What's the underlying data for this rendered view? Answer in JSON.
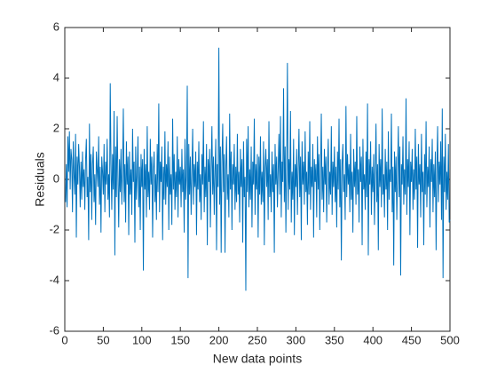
{
  "chart_data": {
    "type": "line",
    "xlabel": "New data points",
    "ylabel": "Residuals",
    "color": "#0072BD",
    "xlim": [
      0,
      500
    ],
    "ylim": [
      -6,
      6
    ],
    "xticks": [
      0,
      50,
      100,
      150,
      200,
      250,
      300,
      350,
      400,
      450,
      500
    ],
    "yticks": [
      -6,
      -4,
      -2,
      0,
      2,
      4,
      6
    ],
    "x": [
      1,
      2,
      3,
      4,
      5,
      6,
      7,
      8,
      9,
      10,
      11,
      12,
      13,
      14,
      15,
      16,
      17,
      18,
      19,
      20,
      21,
      22,
      23,
      24,
      25,
      26,
      27,
      28,
      29,
      30,
      31,
      32,
      33,
      34,
      35,
      36,
      37,
      38,
      39,
      40,
      41,
      42,
      43,
      44,
      45,
      46,
      47,
      48,
      49,
      50,
      51,
      52,
      53,
      54,
      55,
      56,
      57,
      58,
      59,
      60,
      61,
      62,
      63,
      64,
      65,
      66,
      67,
      68,
      69,
      70,
      71,
      72,
      73,
      74,
      75,
      76,
      77,
      78,
      79,
      80,
      81,
      82,
      83,
      84,
      85,
      86,
      87,
      88,
      89,
      90,
      91,
      92,
      93,
      94,
      95,
      96,
      97,
      98,
      99,
      100,
      101,
      102,
      103,
      104,
      105,
      106,
      107,
      108,
      109,
      110,
      111,
      112,
      113,
      114,
      115,
      116,
      117,
      118,
      119,
      120,
      121,
      122,
      123,
      124,
      125,
      126,
      127,
      128,
      129,
      130,
      131,
      132,
      133,
      134,
      135,
      136,
      137,
      138,
      139,
      140,
      141,
      142,
      143,
      144,
      145,
      146,
      147,
      148,
      149,
      150,
      151,
      152,
      153,
      154,
      155,
      156,
      157,
      158,
      159,
      160,
      161,
      162,
      163,
      164,
      165,
      166,
      167,
      168,
      169,
      170,
      171,
      172,
      173,
      174,
      175,
      176,
      177,
      178,
      179,
      180,
      181,
      182,
      183,
      184,
      185,
      186,
      187,
      188,
      189,
      190,
      191,
      192,
      193,
      194,
      195,
      196,
      197,
      198,
      199,
      200,
      201,
      202,
      203,
      204,
      205,
      206,
      207,
      208,
      209,
      210,
      211,
      212,
      213,
      214,
      215,
      216,
      217,
      218,
      219,
      220,
      221,
      222,
      223,
      224,
      225,
      226,
      227,
      228,
      229,
      230,
      231,
      232,
      233,
      234,
      235,
      236,
      237,
      238,
      239,
      240,
      241,
      242,
      243,
      244,
      245,
      246,
      247,
      248,
      249,
      250,
      251,
      252,
      253,
      254,
      255,
      256,
      257,
      258,
      259,
      260,
      261,
      262,
      263,
      264,
      265,
      266,
      267,
      268,
      269,
      270,
      271,
      272,
      273,
      274,
      275,
      276,
      277,
      278,
      279,
      280,
      281,
      282,
      283,
      284,
      285,
      286,
      287,
      288,
      289,
      290,
      291,
      292,
      293,
      294,
      295,
      296,
      297,
      298,
      299,
      300,
      301,
      302,
      303,
      304,
      305,
      306,
      307,
      308,
      309,
      310,
      311,
      312,
      313,
      314,
      315,
      316,
      317,
      318,
      319,
      320,
      321,
      322,
      323,
      324,
      325,
      326,
      327,
      328,
      329,
      330,
      331,
      332,
      333,
      334,
      335,
      336,
      337,
      338,
      339,
      340,
      341,
      342,
      343,
      344,
      345,
      346,
      347,
      348,
      349,
      350,
      351,
      352,
      353,
      354,
      355,
      356,
      357,
      358,
      359,
      360,
      361,
      362,
      363,
      364,
      365,
      366,
      367,
      368,
      369,
      370,
      371,
      372,
      373,
      374,
      375,
      376,
      377,
      378,
      379,
      380,
      381,
      382,
      383,
      384,
      385,
      386,
      387,
      388,
      389,
      390,
      391,
      392,
      393,
      394,
      395,
      396,
      397,
      398,
      399,
      400,
      401,
      402,
      403,
      404,
      405,
      406,
      407,
      408,
      409,
      410,
      411,
      412,
      413,
      414,
      415,
      416,
      417,
      418,
      419,
      420,
      421,
      422,
      423,
      424,
      425,
      426,
      427,
      428,
      429,
      430,
      431,
      432,
      433,
      434,
      435,
      436,
      437,
      438,
      439,
      440,
      441,
      442,
      443,
      444,
      445,
      446,
      447,
      448,
      449,
      450,
      451,
      452,
      453,
      454,
      455,
      456,
      457,
      458,
      459,
      460,
      461,
      462,
      463,
      464,
      465,
      466,
      467,
      468,
      469,
      470,
      471,
      472,
      473,
      474,
      475,
      476,
      477,
      478,
      479,
      480,
      481,
      482,
      483,
      484,
      485,
      486,
      487,
      488,
      489,
      490,
      491,
      492,
      493,
      494,
      495,
      496,
      497,
      498,
      499,
      500
    ],
    "values": [
      -0.9,
      0.6,
      -1.1,
      1.7,
      0.3,
      1.9,
      -0.4,
      1.2,
      0.8,
      -1.3,
      1.5,
      0.2,
      -0.6,
      1.8,
      -2.3,
      0.9,
      -0.2,
      1.4,
      0.5,
      -1.1,
      0.7,
      -0.8,
      1.1,
      -0.3,
      0.4,
      -1.2,
      0.8,
      1.6,
      -0.7,
      0.1,
      -2.4,
      2.2,
      -0.5,
      1.0,
      -1.6,
      0.6,
      1.3,
      -0.9,
      0.2,
      -1.8,
      1.1,
      0.4,
      -0.3,
      1.7,
      -1.0,
      0.5,
      -2.1,
      0.9,
      0.3,
      -0.6,
      1.4,
      -1.3,
      0.7,
      -0.2,
      1.6,
      -0.8,
      0.2,
      -1.5,
      3.8,
      0.6,
      -1.2,
      1.0,
      -0.4,
      2.7,
      -3.0,
      1.3,
      -0.7,
      2.5,
      0.1,
      -1.9,
      0.8,
      -0.5,
      1.2,
      -1.0,
      0.3,
      2.8,
      -0.9,
      0.6,
      -1.7,
      1.5,
      -0.2,
      0.9,
      -2.2,
      1.1,
      -0.6,
      0.4,
      -1.4,
      2.0,
      -0.1,
      0.7,
      -2.5,
      1.3,
      -0.8,
      0.2,
      1.7,
      -1.1,
      0.5,
      -2.0,
      1.0,
      -0.3,
      0.8,
      -3.6,
      1.2,
      -0.4,
      0.6,
      -1.5,
      2.1,
      -0.7,
      0.3,
      -1.2,
      1.6,
      -0.2,
      0.9,
      -2.3,
      0.4,
      1.1,
      -0.9,
      0.2,
      -1.6,
      1.4,
      -0.5,
      3.0,
      -1.3,
      0.7,
      -0.1,
      1.3,
      -2.4,
      0.5,
      -0.8,
      1.9,
      -1.0,
      0.6,
      -0.3,
      1.5,
      -2.0,
      0.9,
      -0.6,
      0.2,
      -1.8,
      2.4,
      -0.4,
      1.0,
      -1.2,
      0.3,
      -0.7,
      1.7,
      -1.5,
      0.8,
      -0.2,
      0.5,
      -1.1,
      1.2,
      -0.5,
      0.4,
      -2.1,
      1.6,
      -0.8,
      0.1,
      3.7,
      -3.9,
      1.4,
      -0.6,
      0.9,
      -1.4,
      0.3,
      2.0,
      -1.0,
      0.6,
      -0.3,
      1.1,
      -2.2,
      0.7,
      -0.4,
      1.5,
      -0.9,
      0.2,
      -1.6,
      1.0,
      -0.2,
      2.3,
      -1.3,
      0.5,
      -0.7,
      1.4,
      -2.6,
      0.8,
      -0.1,
      1.2,
      -1.9,
      0.4,
      2.1,
      -0.6,
      0.9,
      -1.4,
      0.3,
      1.6,
      -2.8,
      0.6,
      -0.3,
      5.2,
      -1.0,
      1.3,
      -2.9,
      0.7,
      2.2,
      -0.5,
      1.0,
      -2.9,
      0.4,
      1.7,
      -0.8,
      0.2,
      -1.5,
      2.6,
      -0.4,
      1.1,
      -2.0,
      0.6,
      -0.2,
      1.4,
      -1.2,
      0.5,
      -0.9,
      1.8,
      -0.6,
      0.3,
      -1.7,
      1.2,
      -0.3,
      0.8,
      -2.5,
      1.5,
      -0.7,
      0.1,
      -4.4,
      1.6,
      -0.5,
      2.1,
      -1.1,
      0.4,
      -0.8,
      1.3,
      -1.9,
      0.7,
      -0.2,
      2.4,
      -1.4,
      0.6,
      -0.4,
      1.0,
      -2.3,
      0.9,
      -0.6,
      1.7,
      -1.0,
      0.3,
      -0.9,
      1.5,
      -2.6,
      0.5,
      1.2,
      -0.3,
      0.8,
      -1.6,
      2.3,
      -0.7,
      0.2,
      -1.3,
      1.1,
      -0.5,
      0.6,
      -2.9,
      1.4,
      -0.2,
      0.9,
      -1.1,
      0.4,
      1.8,
      -0.6,
      2.5,
      -1.5,
      0.7,
      -0.1,
      3.6,
      -0.9,
      1.3,
      -2.1,
      0.5,
      4.6,
      -1.2,
      0.8,
      -0.4,
      2.7,
      -1.7,
      0.3,
      -0.8,
      1.6,
      -2.2,
      0.6,
      -0.3,
      1.2,
      -1.4,
      0.4,
      2.0,
      -0.7,
      0.9,
      -2.4,
      1.5,
      -0.2,
      0.7,
      -1.0,
      1.9,
      -0.5,
      0.3,
      -1.8,
      1.1,
      -0.6,
      2.3,
      -1.2,
      0.5,
      -0.3,
      1.4,
      -2.3,
      0.8,
      -0.1,
      0.6,
      -1.5,
      1.7,
      -0.4,
      1.0,
      -2.0,
      0.2,
      2.6,
      -0.8,
      0.5,
      -1.3,
      1.2,
      -0.2,
      0.9,
      -1.7,
      0.4,
      1.6,
      -1.0,
      0.3,
      -0.6,
      2.1,
      -1.4,
      0.7,
      -0.3,
      1.3,
      -0.9,
      0.5,
      -1.9,
      1.1,
      -0.4,
      2.4,
      -1.1,
      0.8,
      -3.2,
      0.6,
      1.4,
      -0.5,
      0.2,
      -1.6,
      2.9,
      -0.7,
      1.0,
      -0.2,
      0.6,
      -1.3,
      1.8,
      -0.8,
      0.3,
      -2.1,
      1.2,
      -0.3,
      0.7,
      -1.0,
      2.5,
      -0.6,
      0.4,
      -1.7,
      1.3,
      -0.1,
      0.9,
      -2.6,
      1.6,
      -0.4,
      0.2,
      -1.2,
      1.1,
      -0.7,
      3.0,
      -3.0,
      0.8,
      -0.2,
      1.5,
      -1.4,
      0.5,
      -0.5,
      1.0,
      -1.8,
      0.3,
      2.2,
      -0.9,
      0.6,
      -2.8,
      1.4,
      -0.3,
      0.8,
      -1.1,
      2.8,
      -0.6,
      0.2,
      -1.5,
      1.2,
      -0.4,
      0.7,
      -2.0,
      1.9,
      -0.8,
      0.4,
      -0.1,
      2.6,
      -1.3,
      0.5,
      -3.4,
      1.1,
      -0.5,
      0.9,
      -1.6,
      0.3,
      2.1,
      -0.7,
      1.3,
      -3.8,
      0.6,
      -0.2,
      1.7,
      -1.0,
      0.4,
      -0.6,
      3.2,
      -1.4,
      0.8,
      -0.3,
      1.5,
      -2.2,
      0.7,
      -0.1,
      1.2,
      -1.2,
      0.4,
      -0.8,
      2.0,
      -0.4,
      0.9,
      -2.7,
      1.4,
      -0.2,
      0.6,
      -1.5,
      1.8,
      -0.5,
      0.3,
      -2.6,
      1.0,
      -0.6,
      2.3,
      -1.1,
      0.5,
      -0.3,
      1.3,
      -1.9,
      0.8,
      -0.1,
      1.6,
      -1.3,
      0.6,
      -0.7,
      1.1,
      -2.8,
      0.4,
      2.1,
      -0.9,
      0.7,
      -0.2,
      1.5,
      -1.6,
      2.8,
      -3.9,
      0.9,
      -0.5,
      1.8,
      -1.2,
      0.3,
      -0.8,
      1.4,
      -1.7,
      -1.6
    ]
  }
}
